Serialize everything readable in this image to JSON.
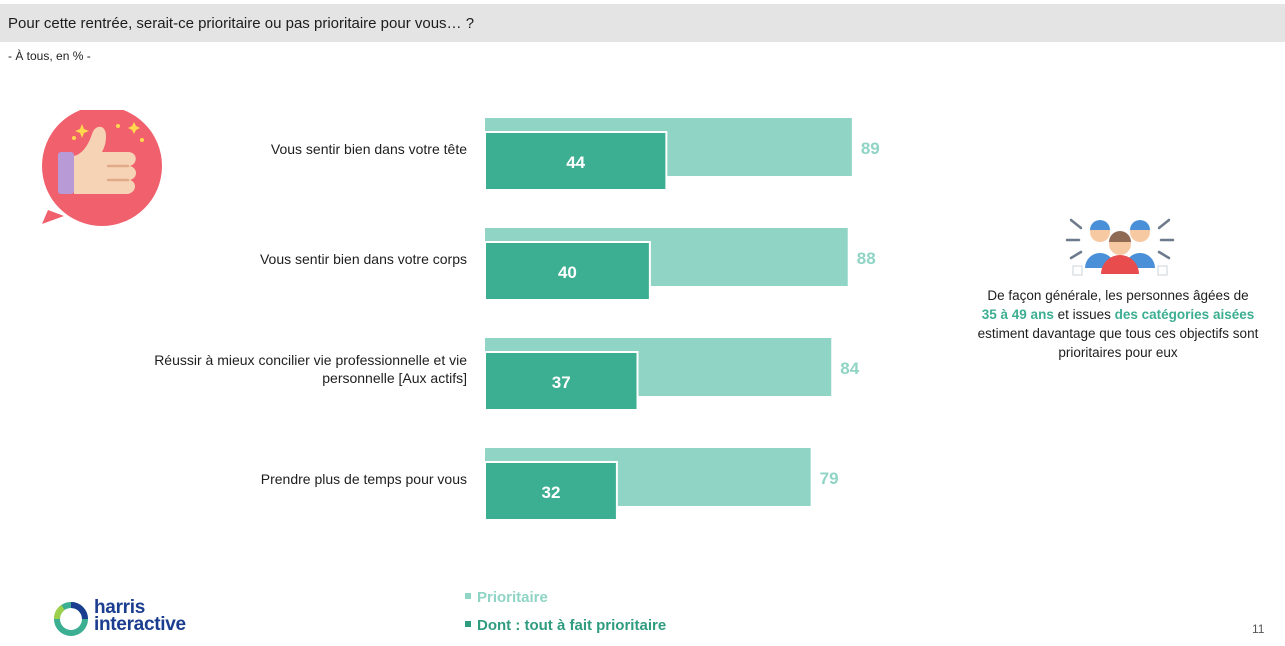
{
  "header": {
    "title": "Pour cette rentrée, serait-ce prioritaire ou pas prioritaire pour vous… ?",
    "subtitle": "- À tous, en % -"
  },
  "chart_data": {
    "type": "bar",
    "orientation": "horizontal",
    "categories": [
      "Vous sentir bien dans votre tête",
      "Vous sentir bien dans votre corps",
      "Réussir à mieux concilier vie professionnelle et vie personnelle  [Aux actifs]",
      "Prendre plus de temps pour vous"
    ],
    "category_lines": [
      [
        "Vous sentir bien dans votre tête"
      ],
      [
        "Vous sentir bien dans votre corps"
      ],
      [
        "Réussir à mieux concilier vie professionnelle et vie",
        "personnelle  [Aux actifs]"
      ],
      [
        "Prendre plus de temps pour vous"
      ]
    ],
    "series": [
      {
        "name": "Prioritaire",
        "values": [
          89,
          88,
          84,
          79
        ],
        "color": "#8fd4c5"
      },
      {
        "name": "Dont : tout à fait prioritaire",
        "values": [
          44,
          40,
          37,
          32
        ],
        "color": "#3cae92"
      }
    ],
    "xlim": [
      0,
      100
    ],
    "grid": false,
    "legend_position": "bottom"
  },
  "legend": {
    "prioritaire": "Prioritaire",
    "tout_a_fait": "Dont : tout à fait prioritaire"
  },
  "note": {
    "part1": "De façon générale, les personnes âgées de",
    "highlight1": "35 à 49 ans",
    "part2": "et issues",
    "highlight2": "des catégories aisées",
    "part3": "estiment davantage que tous ces objectifs sont prioritaires pour eux"
  },
  "footer": {
    "logo_line1": "harris",
    "logo_line2": "interactive",
    "page_number": "11"
  },
  "icons": {
    "thumb": "thumbs-up-icon",
    "people": "people-group-icon"
  },
  "colors": {
    "light_bar": "#8fd4c5",
    "dark_bar": "#3cae92",
    "title_band": "#e4e4e4",
    "accent_text": "#3cae92"
  }
}
